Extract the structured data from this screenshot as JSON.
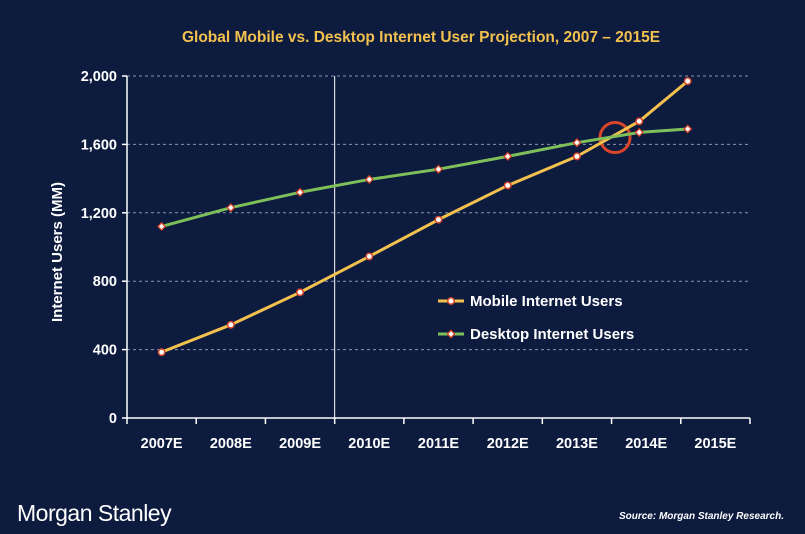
{
  "chart_data": {
    "type": "line",
    "title": "Global Mobile vs. Desktop Internet User Projection, 2007 – 2015E",
    "ylabel": "Internet Users (MM)",
    "xlabel": "",
    "categories": [
      "2007E",
      "2008E",
      "2009E",
      "2010E",
      "2011E",
      "2012E",
      "2013E",
      "2014E",
      "2015E"
    ],
    "ylim": [
      0,
      2000
    ],
    "yticks": [
      0,
      400,
      800,
      1200,
      1600,
      2000
    ],
    "ytick_labels": [
      "0",
      "400",
      "800",
      "1,200",
      "1,600",
      "2,000"
    ],
    "grid": true,
    "legend_position": "center-right",
    "series": [
      {
        "name": "Mobile Internet Users",
        "color": "#f2c14e",
        "marker": "circle",
        "x": [
          0,
          1,
          2,
          3,
          4,
          5,
          6,
          6.9,
          7.6
        ],
        "values": [
          385,
          545,
          735,
          945,
          1160,
          1360,
          1530,
          1735,
          1970
        ]
      },
      {
        "name": "Desktop Internet Users",
        "color": "#7fbf5a",
        "marker": "diamond",
        "x": [
          0,
          1,
          2,
          3,
          4,
          5,
          6,
          6.9,
          7.6
        ],
        "values": [
          1120,
          1230,
          1320,
          1395,
          1455,
          1530,
          1610,
          1670,
          1690
        ]
      }
    ],
    "annotations": [
      {
        "type": "vertical-line",
        "x": 2.5,
        "color": "#ffffff"
      },
      {
        "type": "circle",
        "x": 6.55,
        "y": 1640,
        "color": "#d9452b"
      }
    ]
  },
  "footer": {
    "brand": "Morgan Stanley",
    "source": "Source: Morgan Stanley Research."
  },
  "colors": {
    "background": "#0d1b3f",
    "title": "#f2c14e",
    "grid": "#8c95ad",
    "text": "#ffffff"
  }
}
